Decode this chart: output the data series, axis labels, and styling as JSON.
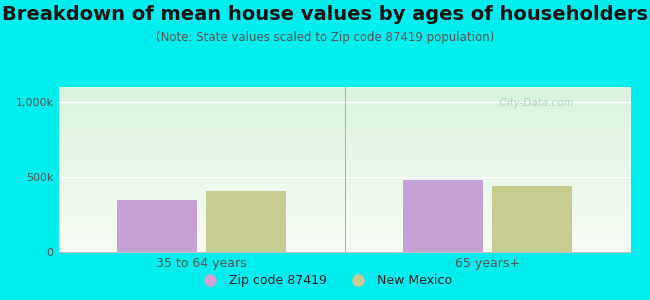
{
  "title": "Breakdown of mean house values by ages of householders",
  "subtitle": "(Note: State values scaled to Zip code 87419 population)",
  "categories": [
    "35 to 64 years",
    "65 years+"
  ],
  "series": [
    {
      "label": "Zip code 87419",
      "values": [
        350000,
        480000
      ],
      "color": "#c4a0d4"
    },
    {
      "label": "New Mexico",
      "values": [
        410000,
        440000
      ],
      "color": "#c8cc90"
    }
  ],
  "ylim": [
    0,
    1100000
  ],
  "yticks": [
    0,
    500000,
    1000000
  ],
  "ytick_labels": [
    "0",
    "500k",
    "1,000k"
  ],
  "background_color": "#00EEEE",
  "title_fontsize": 14,
  "subtitle_fontsize": 8.5,
  "bar_width": 0.28,
  "watermark": "  City-Data.com",
  "legend_color_zip": "#d4a0d8",
  "legend_color_nm": "#c8cc90"
}
